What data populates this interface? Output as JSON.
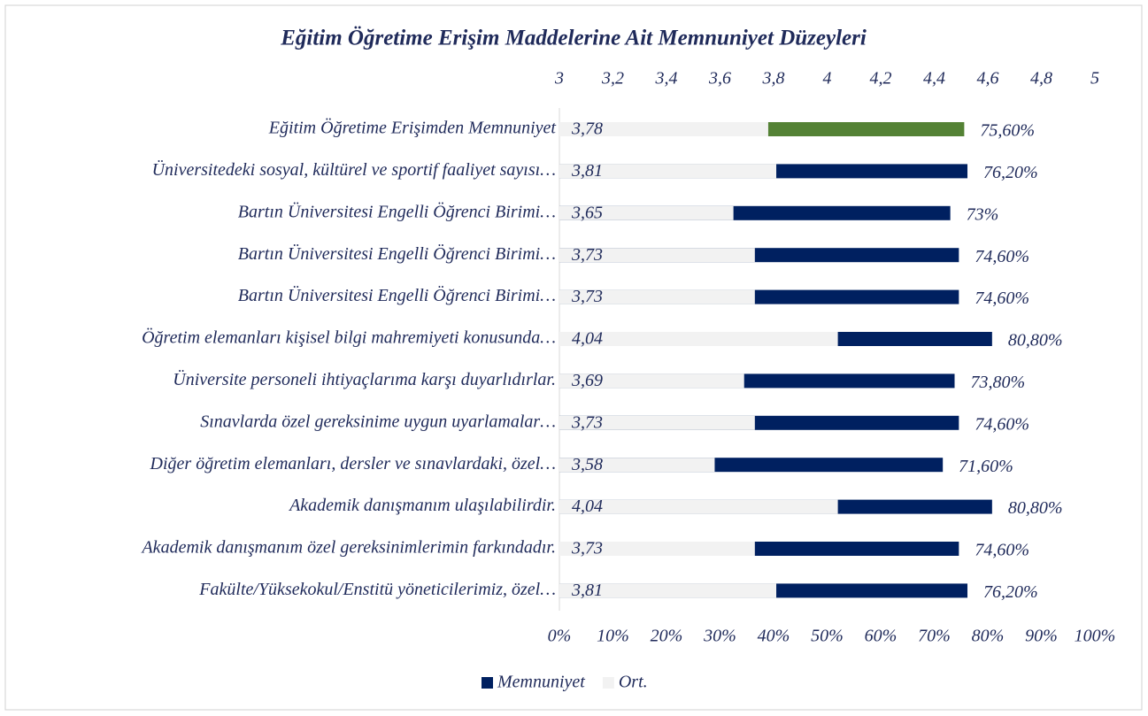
{
  "chart_data": {
    "type": "bar",
    "title": "Eğitim Öğretime Erişim Maddelerine Ait Memnuniyet Düzeyleri",
    "categories": [
      "Eğitim Öğretime Erişimden Memnuniyet",
      "Üniversitedeki sosyal, kültürel ve sportif faaliyet sayısı…",
      "Bartın Üniversitesi Engelli Öğrenci Birimi…",
      "Bartın Üniversitesi Engelli Öğrenci Birimi…",
      "Bartın Üniversitesi Engelli Öğrenci Birimi…",
      "Öğretim elemanları kişisel bilgi mahremiyeti konusunda…",
      "Üniversite personeli ihtiyaçlarıma karşı duyarlıdırlar.",
      "Sınavlarda özel gereksinime uygun uyarlamalar…",
      "Diğer öğretim elemanları, dersler ve sınavlardaki, özel…",
      "Akademik danışmanım ulaşılabilirdir.",
      "Akademik danışmanım özel gereksinimlerimin farkındadır.",
      "Fakülte/Yüksekokul/Enstitü yöneticilerimiz, özel…"
    ],
    "series": [
      {
        "name": "Memnuniyet",
        "axis": "x2",
        "color": "#002060",
        "colors": [
          "#548235",
          "#002060",
          "#002060",
          "#002060",
          "#002060",
          "#002060",
          "#002060",
          "#002060",
          "#002060",
          "#002060",
          "#002060",
          "#002060"
        ],
        "values": [
          75.6,
          76.2,
          73,
          74.6,
          74.6,
          80.8,
          73.8,
          74.6,
          71.6,
          80.8,
          74.6,
          76.2
        ],
        "value_labels": [
          "75,60%",
          "76,20%",
          "73%",
          "74,60%",
          "74,60%",
          "80,80%",
          "73,80%",
          "74,60%",
          "71,60%",
          "80,80%",
          "74,60%",
          "76,20%"
        ]
      },
      {
        "name": "Ort.",
        "color": "#f2f2f2",
        "values": [
          3.78,
          3.81,
          3.65,
          3.73,
          3.73,
          4.04,
          3.69,
          3.73,
          3.58,
          4.04,
          3.73,
          3.81
        ],
        "value_labels": [
          "3,78",
          "3,81",
          "3,65",
          "3,73",
          "3,73",
          "4,04",
          "3,69",
          "3,73",
          "3,58",
          "4,04",
          "3,73",
          "3,81"
        ]
      }
    ],
    "xlim": [
      3,
      5
    ],
    "xticks": [
      3,
      {
        "value": 3.2,
        "label": "3,2"
      },
      {
        "value": 3.4,
        "label": "3,4"
      },
      {
        "value": 3.6,
        "label": "3,6"
      },
      {
        "value": 3.8,
        "label": "3,8"
      },
      4,
      {
        "value": 4.2,
        "label": "4,2"
      },
      {
        "value": 4.4,
        "label": "4,4"
      },
      {
        "value": 4.6,
        "label": "4,6"
      },
      {
        "value": 4.8,
        "label": "4,8"
      },
      5
    ],
    "x2lim": [
      0,
      100
    ],
    "x2ticks": [
      {
        "value": 0,
        "label": "0%"
      },
      {
        "value": 10,
        "label": "10%"
      },
      {
        "value": 20,
        "label": "20%"
      },
      {
        "value": 30,
        "label": "30%"
      },
      {
        "value": 40,
        "label": "40%"
      },
      {
        "value": 50,
        "label": "50%"
      },
      {
        "value": 60,
        "label": "60%"
      },
      {
        "value": 70,
        "label": "70%"
      },
      {
        "value": 80,
        "label": "80%"
      },
      {
        "value": 90,
        "label": "90%"
      },
      {
        "value": 100,
        "label": "100%"
      }
    ],
    "legend": "bottom"
  }
}
